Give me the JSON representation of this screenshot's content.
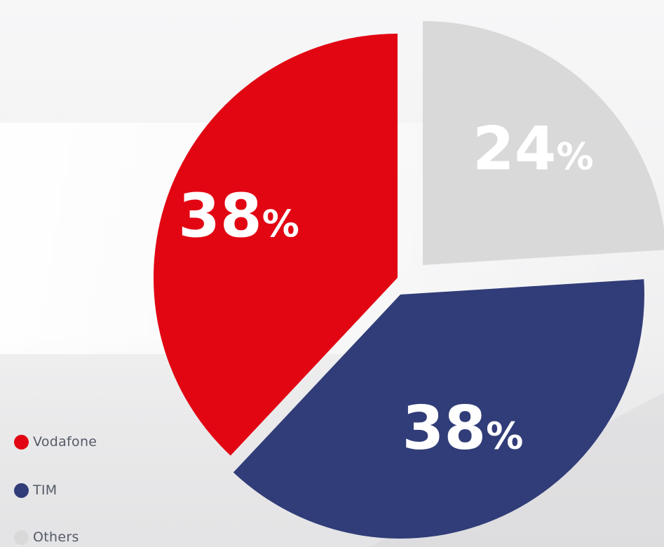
{
  "chart_data": {
    "type": "pie",
    "title": "",
    "categories": [
      "Vodafone",
      "TIM",
      "Others"
    ],
    "values": [
      38,
      38,
      24
    ],
    "labels": [
      "38%",
      "38%",
      "24%"
    ],
    "colors": [
      "#e20613",
      "#313d78",
      "#d9d9d9"
    ],
    "legend_position": "bottom-left",
    "exploded": true
  }
}
